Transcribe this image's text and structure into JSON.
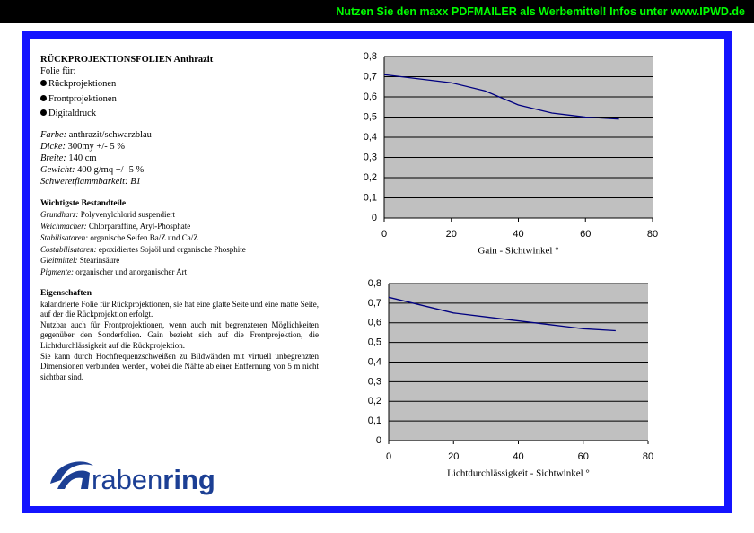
{
  "banner": "Nutzen Sie den maxx PDFMAILER als Werbemittel! Infos unter www.IPWD.de",
  "product": {
    "title": "RÜCKPROJEKTIONSFOLIEN Anthrazit",
    "subtitle": "Folie für:",
    "bullets": [
      "Rückprojektionen",
      "Frontprojektionen",
      "Digitaldruck"
    ],
    "properties": [
      {
        "label": "Farbe:",
        "value": "anthrazit/schwarzblau"
      },
      {
        "label": "Dicke:",
        "value": "300my  +/- 5 %"
      },
      {
        "label": "Breite:",
        "value": "140 cm"
      },
      {
        "label": "Gewicht:",
        "value": "400 g/mq +/- 5 %"
      },
      {
        "label": "Schweretflammbarkeit:",
        "value": "B1"
      }
    ],
    "ingredients": {
      "heading": "Wichtigste Bestandteile",
      "items": [
        {
          "label": "Grundharz:",
          "value": "Polyvenylchlorid suspendiert"
        },
        {
          "label": "Weichmacher:",
          "value": "Chlorparaffine, Aryl-Phosphate"
        },
        {
          "label": "Stabilisatoren:",
          "value": "organische Seifen Ba/Z und Ca/Z"
        },
        {
          "label": "Costabilisatoren:",
          "value": "epoxidiertes Sojaöl und organische Phosphite"
        },
        {
          "label": "Gleitmittel:",
          "value": "Stearinsäure"
        },
        {
          "label": "Pigmente:",
          "value": "organischer und anorganischer Art"
        }
      ]
    },
    "properties_text": {
      "heading": "Eigenschaften",
      "paragraphs": [
        "kalandrierte Folie für Rückprojektionen, sie hat eine glatte Seite und eine matte Seite, auf der die Rückprojektion erfolgt.",
        "Nutzbar auch für Frontprojektionen, wenn auch mit begrenzteren Möglichkeiten gegenüber den Sonderfolien. Gain bezieht sich auf die Frontprojektion, die Lichtdurchlässigkeit auf die Rückprojektion.",
        "Sie kann durch Hochfrequenzschweißen zu Bildwänden mit virtuell unbegrenzten Dimensionen verbunden werden, wobei die Nähte ab einer Entfernung von 5 m nicht sichtbar sind."
      ]
    }
  },
  "logo": {
    "parts": [
      "raben",
      "ring"
    ]
  },
  "chart_data": [
    {
      "type": "line",
      "x_label": "Gain - Sichtwinkel °",
      "x": [
        0,
        10,
        20,
        30,
        40,
        50,
        60,
        70
      ],
      "series": [
        {
          "color": "#000080",
          "values": [
            0.71,
            0.69,
            0.67,
            0.63,
            0.56,
            0.52,
            0.5,
            0.49
          ]
        }
      ],
      "xlim": [
        0,
        80
      ],
      "xticks": [
        0,
        20,
        40,
        60,
        80
      ],
      "ylim": [
        0,
        0.8
      ],
      "yticks": [
        0,
        {
          "value": 0.1,
          "label": "0,1"
        },
        {
          "value": 0.2,
          "label": "0,2"
        },
        {
          "value": 0.3,
          "label": "0,3"
        },
        {
          "value": 0.4,
          "label": "0,4"
        },
        {
          "value": 0.5,
          "label": "0,5"
        },
        {
          "value": 0.6,
          "label": "0,6"
        },
        {
          "value": 0.7,
          "label": "0,7"
        },
        {
          "value": 0.8,
          "label": "0,8"
        }
      ],
      "grid": true,
      "plot_color": "#c0c0c0"
    },
    {
      "type": "line",
      "x_label": "Lichtdurchlässigkeit - Sichtwinkel °",
      "x": [
        0,
        10,
        20,
        30,
        40,
        50,
        60,
        70
      ],
      "series": [
        {
          "color": "#000080",
          "values": [
            0.73,
            0.69,
            0.65,
            0.63,
            0.61,
            0.59,
            0.57,
            0.56
          ]
        }
      ],
      "xlim": [
        0,
        80
      ],
      "xticks": [
        0,
        20,
        40,
        60,
        80
      ],
      "ylim": [
        0,
        0.8
      ],
      "yticks": [
        0,
        {
          "value": 0.1,
          "label": "0,1"
        },
        {
          "value": 0.2,
          "label": "0,2"
        },
        {
          "value": 0.3,
          "label": "0,3"
        },
        {
          "value": 0.4,
          "label": "0,4"
        },
        {
          "value": 0.5,
          "label": "0,5"
        },
        {
          "value": 0.6,
          "label": "0,6"
        },
        {
          "value": 0.7,
          "label": "0,7"
        },
        {
          "value": 0.8,
          "label": "0,8"
        }
      ],
      "grid": true,
      "plot_color": "#c0c0c0"
    }
  ]
}
